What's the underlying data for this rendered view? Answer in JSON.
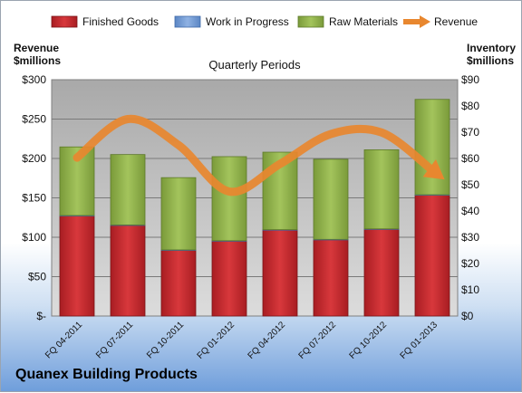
{
  "chart_data": {
    "type": "bar",
    "title": "Quarterly Periods",
    "company": "Quanex Building Products",
    "left_axis_label_line1": "Revenue",
    "left_axis_label_line2": "$millions",
    "right_axis_label_line1": "Inventory",
    "right_axis_label_line2": "$millions",
    "categories": [
      "FQ 04-2011",
      "FQ 07-2011",
      "FQ 10-2011",
      "FQ 01-2012",
      "FQ 04-2012",
      "FQ 07-2012",
      "FQ 10-2012",
      "FQ 01-2013"
    ],
    "left_ylim": [
      0,
      300
    ],
    "right_ylim": [
      0,
      90
    ],
    "left_ticks": [
      "$-",
      "$50",
      "$100",
      "$150",
      "$200",
      "$250",
      "$300"
    ],
    "right_ticks": [
      "$0",
      "$10",
      "$20",
      "$30",
      "$40",
      "$50",
      "$60",
      "$70",
      "$80",
      "$90"
    ],
    "grid": true,
    "legend_position": "top",
    "legend": [
      {
        "name": "Finished Goods",
        "color": "#c0282c"
      },
      {
        "name": "Work in Progress",
        "color": "#6f9bd6"
      },
      {
        "name": "Raw Materials",
        "color": "#8fb04a"
      },
      {
        "name": "Revenue",
        "color": "#e8872f"
      }
    ],
    "series": [
      {
        "name": "Finished Goods",
        "axis": "right",
        "values": [
          38.1,
          34.5,
          25.0,
          28.5,
          32.7,
          29.0,
          33.0,
          46.0
        ]
      },
      {
        "name": "Work in Progress",
        "axis": "right",
        "values": [
          0.2,
          0.2,
          0.2,
          0.2,
          0.2,
          0.2,
          0.2,
          0.2
        ]
      },
      {
        "name": "Raw Materials",
        "axis": "right",
        "values": [
          26.1,
          26.8,
          27.5,
          32.0,
          29.5,
          30.5,
          30.1,
          36.3
        ]
      },
      {
        "name": "Revenue",
        "axis": "left",
        "type": "line",
        "values": [
          201,
          250,
          217,
          158,
          193,
          231,
          233,
          185
        ]
      }
    ]
  }
}
